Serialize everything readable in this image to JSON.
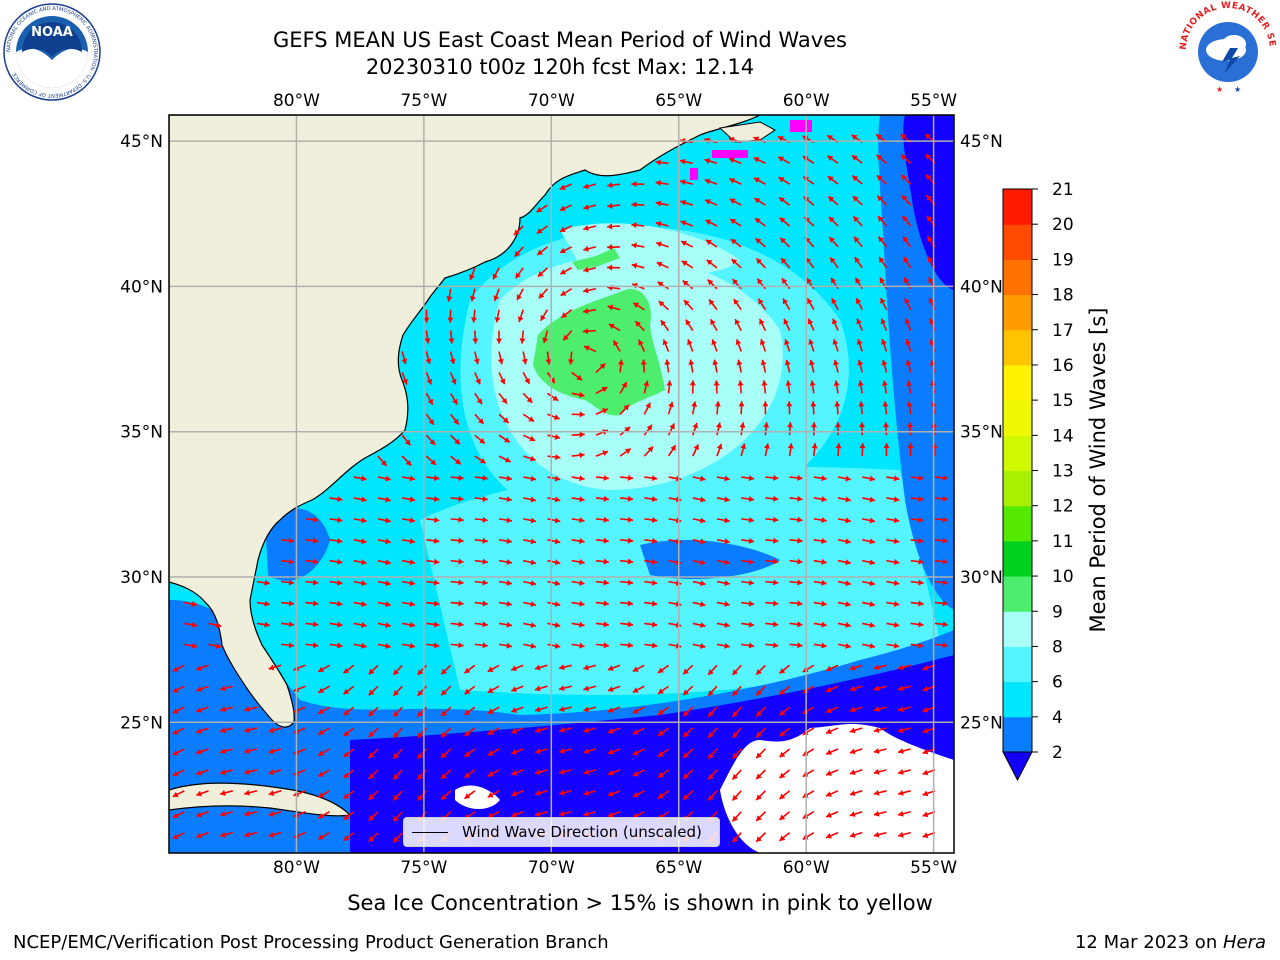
{
  "title_line1": "GEFS MEAN US East Coast Mean Period of Wind Waves",
  "title_line2": "20230310 t00z 120h fcst   Max: 12.14",
  "map": {
    "lon_range": [
      -85,
      -54.2
    ],
    "lat_range": [
      20.5,
      45.9
    ],
    "lon_ticks": [
      -80,
      -75,
      -70,
      -65,
      -60,
      -55
    ],
    "lon_tick_labels": [
      "80°W",
      "75°W",
      "70°W",
      "65°W",
      "60°W",
      "55°W"
    ],
    "lat_ticks": [
      25,
      30,
      35,
      40,
      45
    ],
    "lat_tick_labels": [
      "25°N",
      "30°N",
      "35°N",
      "40°N",
      "45°N"
    ],
    "grid": true
  },
  "colorbar": {
    "label": "Mean Period of Wind Waves [s]",
    "levels": [
      2,
      4,
      6,
      8,
      9,
      10,
      11,
      12,
      13,
      14,
      15,
      16,
      17,
      18,
      19,
      20,
      21
    ],
    "tick_labels": [
      "2",
      "4",
      "6",
      "8",
      "9",
      "10",
      "11",
      "12",
      "13",
      "14",
      "15",
      "16",
      "17",
      "18",
      "19",
      "20",
      "21"
    ],
    "colors": [
      "#0a7cff",
      "#00e6ff",
      "#55f5ff",
      "#a7fff8",
      "#4ded6e",
      "#00d020",
      "#55e800",
      "#a8f000",
      "#d0f800",
      "#eef800",
      "#fff300",
      "#ffc400",
      "#ff9c00",
      "#ff7200",
      "#ff4a00",
      "#ff1a00"
    ],
    "under_color": "#1400ff"
  },
  "legend": {
    "label": "Wind Wave Direction (unscaled)"
  },
  "colors": {
    "land": "#efefdc",
    "arrow": "#ff0000",
    "grid": "#b0b0b0",
    "sea_ice": "#ff00ff"
  },
  "ice_note": "Sea Ice Concentration > 15% is shown in pink to yellow",
  "footer_left": "NCEP/EMC/Verification Post Processing Product Generation Branch",
  "footer_right_date": "12 Mar 2023 on ",
  "footer_right_host": "Hera",
  "logos": {
    "noaa_text": "NOAA",
    "noaa_ring": "NATIONAL OCEANIC AND ATMOSPHERIC ADMINISTRATION · U.S. DEPARTMENT OF COMMERCE",
    "nws_ring": "NATIONAL WEATHER SERVICE"
  }
}
